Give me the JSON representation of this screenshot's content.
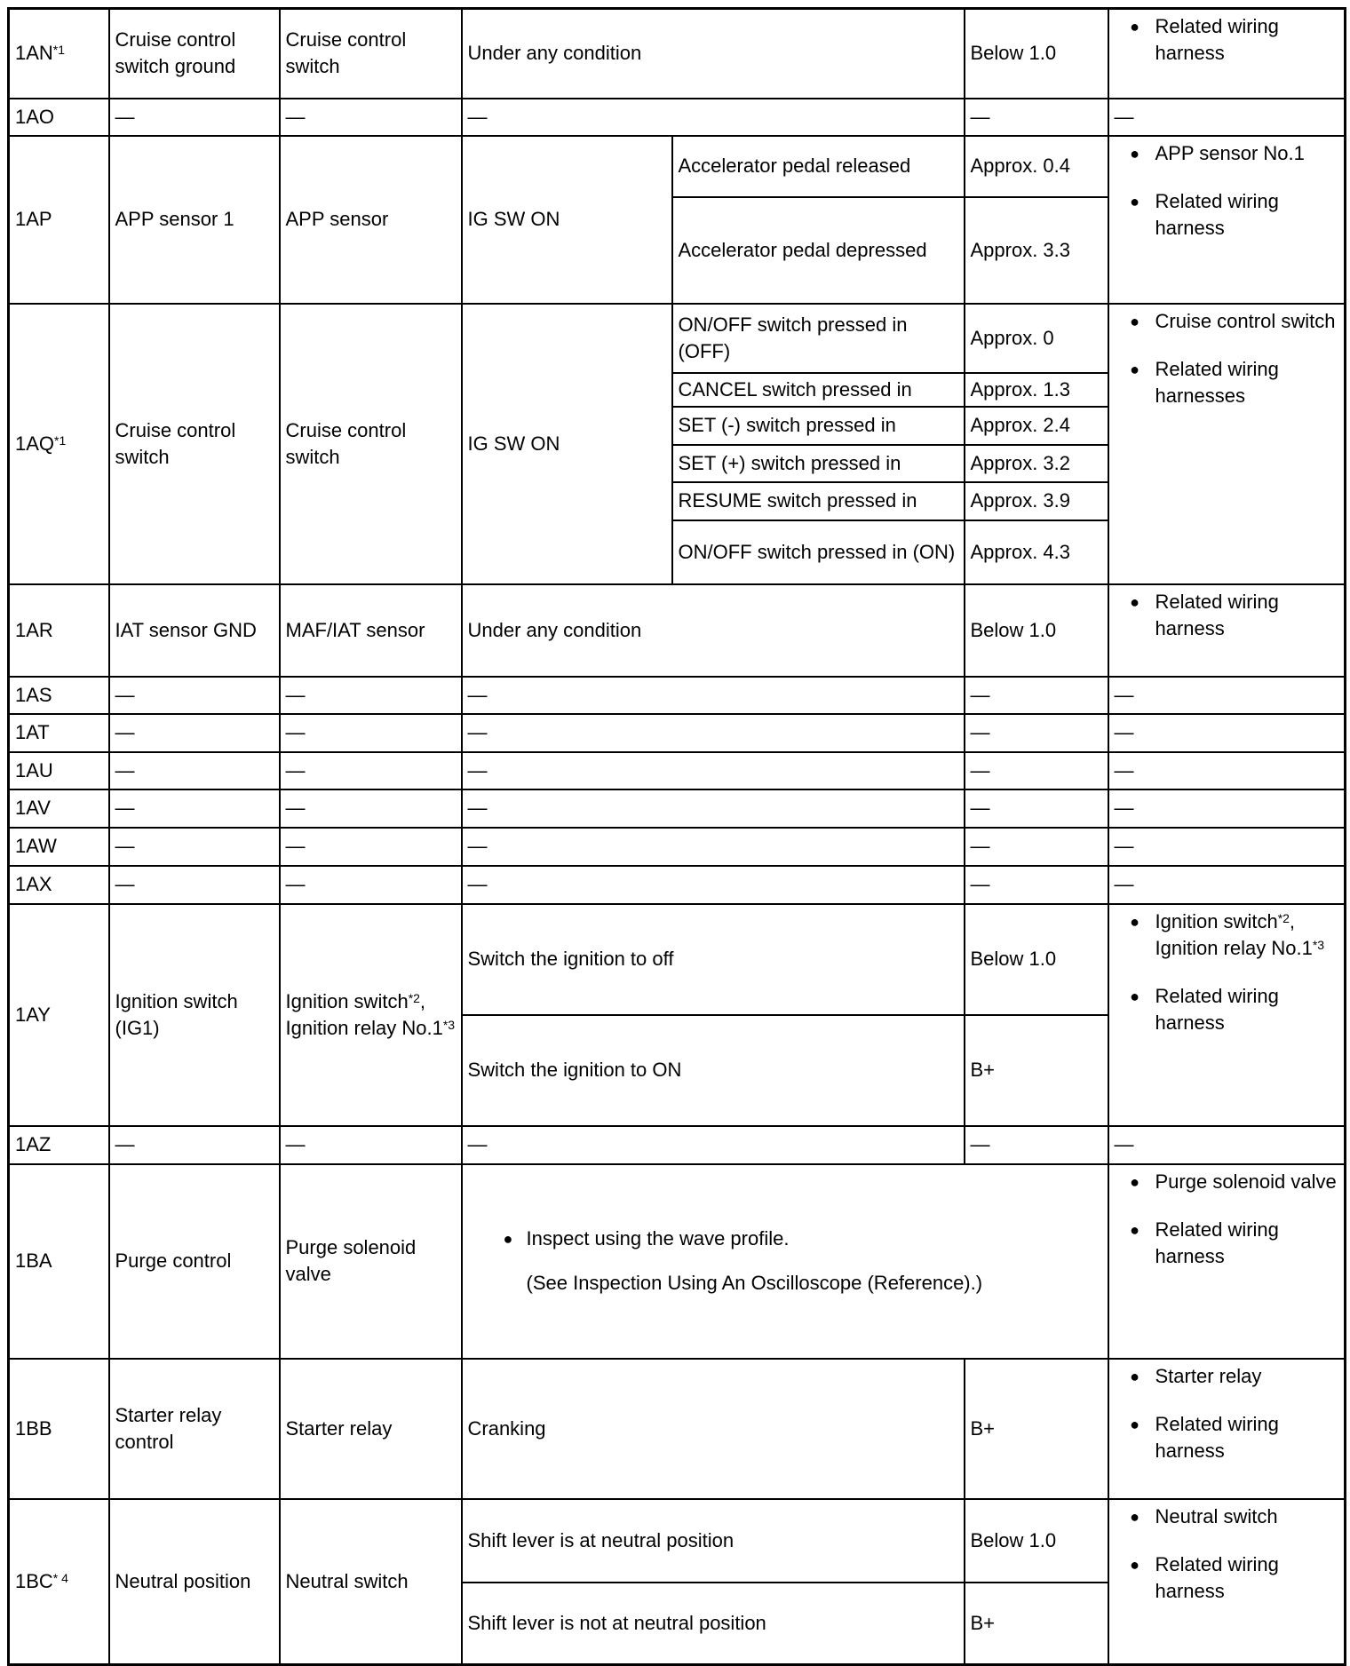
{
  "bullet_icon": "filled-circle",
  "rows": [
    {
      "pin": "1AN",
      "pin_sup": "*1",
      "description": "Cruise control switch ground",
      "connected_to": "Cruise control switch",
      "sub": [
        {
          "condition": "Under any condition",
          "value": "Below 1.0"
        }
      ],
      "inspection": [
        "Related wiring harness"
      ]
    },
    {
      "pin": "1AO",
      "description": "—",
      "connected_to": "—",
      "sub": [
        {
          "condition": "—",
          "value": "—"
        }
      ],
      "inspection_text": "—"
    },
    {
      "pin": "1AP",
      "description": "APP sensor 1",
      "connected_to": "APP sensor",
      "main_condition": "IG SW ON",
      "sub": [
        {
          "condition": "Accelerator pedal released",
          "value": "Approx. 0.4"
        },
        {
          "condition": "Accelerator pedal depressed",
          "value": "Approx. 3.3"
        }
      ],
      "inspection": [
        "APP sensor No.1",
        "Related wiring harness"
      ]
    },
    {
      "pin": "1AQ",
      "pin_sup": "*1",
      "description": "Cruise control switch",
      "connected_to": "Cruise control switch",
      "main_condition": "IG SW ON",
      "sub": [
        {
          "condition": "ON/OFF switch pressed in (OFF)",
          "value": "Approx. 0"
        },
        {
          "condition": "CANCEL switch pressed in",
          "value": "Approx. 1.3"
        },
        {
          "condition": "SET (-) switch pressed in",
          "value": "Approx. 2.4"
        },
        {
          "condition": "SET (+) switch pressed in",
          "value": "Approx. 3.2"
        },
        {
          "condition": "RESUME switch pressed in",
          "value": "Approx. 3.9"
        },
        {
          "condition": "ON/OFF switch pressed in (ON)",
          "value": "Approx. 4.3"
        }
      ],
      "inspection": [
        "Cruise control switch",
        "Related wiring harnesses"
      ]
    },
    {
      "pin": "1AR",
      "description": "IAT sensor GND",
      "connected_to": "MAF/IAT sensor",
      "sub": [
        {
          "condition": "Under any condition",
          "value": "Below 1.0"
        }
      ],
      "inspection": [
        "Related wiring harness"
      ]
    },
    {
      "pin": "1AS",
      "description": "—",
      "connected_to": "—",
      "sub": [
        {
          "condition": "—",
          "value": "—"
        }
      ],
      "inspection_text": "—"
    },
    {
      "pin": "1AT",
      "description": "—",
      "connected_to": "—",
      "sub": [
        {
          "condition": "—",
          "value": "—"
        }
      ],
      "inspection_text": "—"
    },
    {
      "pin": "1AU",
      "description": "—",
      "connected_to": "—",
      "sub": [
        {
          "condition": "—",
          "value": "—"
        }
      ],
      "inspection_text": "—"
    },
    {
      "pin": "1AV",
      "description": "—",
      "connected_to": "—",
      "sub": [
        {
          "condition": "—",
          "value": "—"
        }
      ],
      "inspection_text": "—"
    },
    {
      "pin": "1AW",
      "description": "—",
      "connected_to": "—",
      "sub": [
        {
          "condition": "—",
          "value": "—"
        }
      ],
      "inspection_text": "—"
    },
    {
      "pin": "1AX",
      "description": "—",
      "connected_to": "—",
      "sub": [
        {
          "condition": "—",
          "value": "—"
        }
      ],
      "inspection_text": "—"
    },
    {
      "pin": "1AY",
      "description": "Ignition switch (IG1)",
      "connected_to": [
        {
          "text": "Ignition switch",
          "sup": "*2"
        },
        {
          "text": ", Ignition relay No.1",
          "sup": "*3"
        }
      ],
      "sub": [
        {
          "condition": "Switch the ignition to off",
          "value": "Below 1.0"
        },
        {
          "condition": "Switch the ignition to ON",
          "value": "B+"
        }
      ],
      "inspection": [
        [
          {
            "text": "Ignition switch",
            "sup": "*2"
          },
          {
            "text": ", Ignition relay No.1",
            "sup": "*3"
          }
        ],
        "Related wiring harness"
      ]
    },
    {
      "pin": "1AZ",
      "description": "—",
      "connected_to": "—",
      "sub": [
        {
          "condition": "—",
          "value": "—"
        }
      ],
      "inspection_text": "—"
    },
    {
      "pin": "1BA",
      "description": "Purge control",
      "connected_to": "Purge solenoid valve",
      "note": {
        "bullet": "Inspect using the wave profile.",
        "sub": "(See Inspection Using An Oscilloscope (Reference).)"
      },
      "inspection": [
        "Purge solenoid valve",
        "Related wiring harness"
      ]
    },
    {
      "pin": "1BB",
      "description": "Starter relay control",
      "connected_to": "Starter relay",
      "sub": [
        {
          "condition": "Cranking",
          "value": "B+"
        }
      ],
      "inspection": [
        "Starter relay",
        "Related wiring harness"
      ]
    },
    {
      "pin": "1BC",
      "pin_sup": "* 4",
      "description": "Neutral position",
      "connected_to": "Neutral switch",
      "sub": [
        {
          "condition": "Shift lever is at neutral position",
          "value": "Below 1.0"
        },
        {
          "condition": "Shift lever is not at neutral position",
          "value": "B+"
        }
      ],
      "inspection": [
        "Neutral switch",
        "Related wiring harness"
      ]
    }
  ]
}
